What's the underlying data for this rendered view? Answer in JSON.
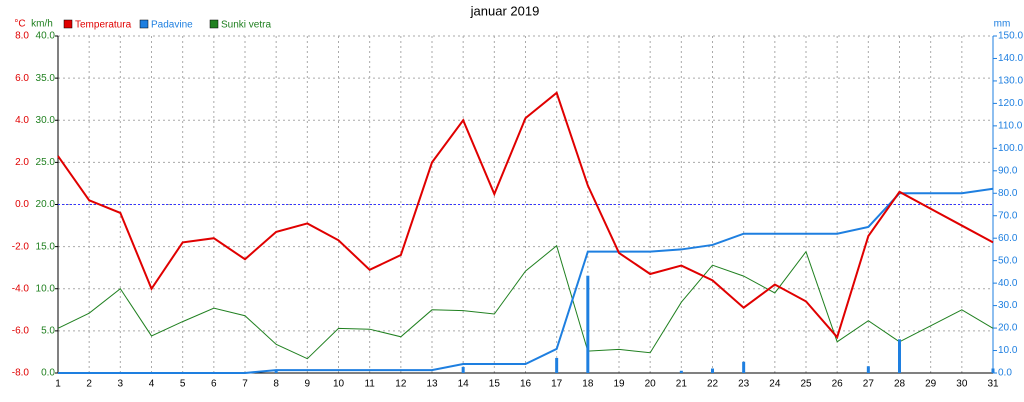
{
  "chart_data": {
    "type": "line",
    "title": "januar 2019",
    "categories": [
      "1",
      "2",
      "3",
      "4",
      "5",
      "6",
      "7",
      "8",
      "9",
      "10",
      "11",
      "12",
      "13",
      "14",
      "15",
      "16",
      "17",
      "18",
      "19",
      "20",
      "21",
      "22",
      "23",
      "24",
      "25",
      "26",
      "27",
      "28",
      "29",
      "30",
      "31"
    ],
    "y_unit": "°C",
    "y2_unit": "km/h",
    "y3_unit": "mm",
    "ylim": [
      -8,
      8
    ],
    "yticks": [
      {
        "value": -8,
        "label": "-8.0"
      },
      {
        "value": -6,
        "label": "-6.0"
      },
      {
        "value": -4,
        "label": "-4.0"
      },
      {
        "value": -2,
        "label": "-2.0"
      },
      {
        "value": 0,
        "label": "0.0"
      },
      {
        "value": 2,
        "label": "2.0"
      },
      {
        "value": 4,
        "label": "4.0"
      },
      {
        "value": 6,
        "label": "6.0"
      },
      {
        "value": 8,
        "label": "8.0"
      }
    ],
    "y2lim": [
      0,
      40
    ],
    "y2ticks": [
      {
        "value": 0,
        "label": "0.0"
      },
      {
        "value": 5,
        "label": "5.0"
      },
      {
        "value": 10,
        "label": "10.0"
      },
      {
        "value": 15,
        "label": "15.0"
      },
      {
        "value": 20,
        "label": "20.0"
      },
      {
        "value": 25,
        "label": "25.0"
      },
      {
        "value": 30,
        "label": "30.0"
      },
      {
        "value": 35,
        "label": "35.0"
      },
      {
        "value": 40,
        "label": "40.0"
      }
    ],
    "y3lim": [
      0,
      150
    ],
    "y3ticks": [
      {
        "value": 0,
        "label": "0.0"
      },
      {
        "value": 10,
        "label": "10.0"
      },
      {
        "value": 20,
        "label": "20.0"
      },
      {
        "value": 30,
        "label": "30.0"
      },
      {
        "value": 40,
        "label": "40.0"
      },
      {
        "value": 50,
        "label": "50.0"
      },
      {
        "value": 60,
        "label": "60.0"
      },
      {
        "value": 70,
        "label": "70.0"
      },
      {
        "value": 80,
        "label": "80.0"
      },
      {
        "value": 90,
        "label": "90.0"
      },
      {
        "value": 100,
        "label": "100.0"
      },
      {
        "value": 110,
        "label": "110.0"
      },
      {
        "value": 120,
        "label": "120.0"
      },
      {
        "value": 130,
        "label": "130.0"
      },
      {
        "value": 140,
        "label": "140.0"
      },
      {
        "value": 150,
        "label": "150.0"
      }
    ],
    "grid": true,
    "hline": 0,
    "hline_color": "#3333ff",
    "series": [
      {
        "name": "Temperatura",
        "color": "#e00000",
        "axis": "y",
        "values": [
          2.3,
          0.2,
          -0.4,
          -4.0,
          -1.8,
          -1.6,
          -2.6,
          -1.3,
          -0.9,
          -1.7,
          -3.1,
          -2.4,
          2.0,
          4.0,
          0.5,
          4.1,
          5.3,
          0.9,
          -2.3,
          -3.3,
          -2.9,
          -3.6,
          -4.9,
          -3.8,
          -4.6,
          -6.3,
          -1.5,
          0.6,
          -0.2,
          -1.0,
          -1.8
        ]
      },
      {
        "name": "Padavine",
        "color": "#1e7fe0",
        "axis": "y3",
        "values": [
          0,
          0,
          0,
          0,
          0,
          0,
          0,
          1.3,
          1.3,
          1.3,
          1.3,
          1.3,
          1.3,
          4,
          4,
          4,
          10.7,
          54,
          54,
          54,
          55,
          57,
          62,
          62,
          62,
          62,
          65,
          80,
          80,
          80,
          82
        ],
        "bars": [
          0,
          0,
          0,
          0,
          0,
          0,
          0,
          1.3,
          0,
          0,
          0,
          0,
          0,
          2.7,
          0,
          0,
          6.7,
          43.3,
          0,
          0,
          1,
          2,
          5,
          0,
          0,
          0,
          3,
          15,
          0,
          0,
          2
        ]
      },
      {
        "name": "Sunki vetra",
        "color": "#208020",
        "axis": "y2",
        "values": [
          5.3,
          7.1,
          10.0,
          4.4,
          6.1,
          7.7,
          6.8,
          3.4,
          1.7,
          5.3,
          5.2,
          4.3,
          7.5,
          7.4,
          7.0,
          12.1,
          15.1,
          2.6,
          2.8,
          2.4,
          8.4,
          12.8,
          11.5,
          9.5,
          14.4,
          3.7,
          6.2,
          3.7,
          5.6,
          7.5,
          5.3
        ]
      }
    ]
  }
}
